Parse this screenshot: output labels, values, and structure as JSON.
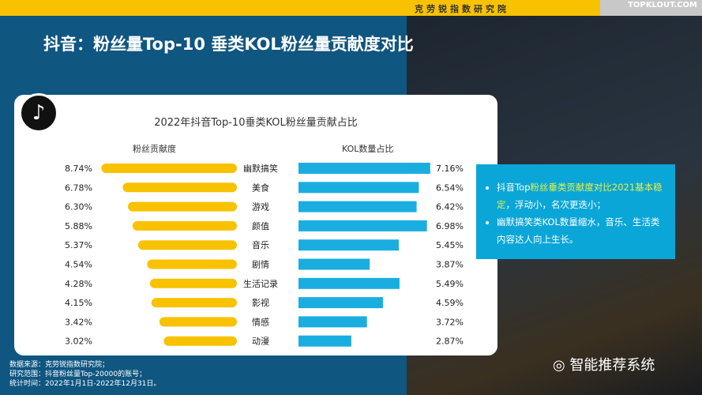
{
  "header": {
    "org": "克劳锐指数研究院",
    "brand": "TOPKLOUT.COM"
  },
  "title": "抖音：粉丝量Top-10 垂类KOL粉丝量贡献度对比",
  "logo": "tiktok-logo",
  "chart_data": {
    "type": "bar",
    "title": "2022年抖音Top-10垂类KOL粉丝量贡献占比",
    "categories": [
      "幽默搞笑",
      "美食",
      "游戏",
      "颜值",
      "音乐",
      "剧情",
      "生活记录",
      "影视",
      "情感",
      "动漫"
    ],
    "series": [
      {
        "name": "粉丝贡献度",
        "color": "#f8c200",
        "values": [
          8.74,
          6.78,
          6.3,
          5.88,
          5.37,
          4.54,
          4.28,
          4.15,
          3.42,
          3.02
        ],
        "labels": [
          "8.74%",
          "6.78%",
          "6.30%",
          "5.88%",
          "5.37%",
          "4.54%",
          "4.28%",
          "4.15%",
          "3.42%",
          "3.02%"
        ]
      },
      {
        "name": "KOL数量占比",
        "color": "#1aaee0",
        "values": [
          7.16,
          6.54,
          6.42,
          6.98,
          5.45,
          3.87,
          5.49,
          4.59,
          3.72,
          2.87
        ],
        "labels": [
          "7.16%",
          "6.54%",
          "6.42%",
          "6.98%",
          "5.45%",
          "3.87%",
          "5.49%",
          "4.59%",
          "3.72%",
          "2.87%"
        ]
      }
    ]
  },
  "info": {
    "b1_pre": "抖音Top",
    "b1_hl": "粉丝垂类贡献度对比2021基本稳定",
    "b1_post": "，浮动小，名次更迭小；",
    "b2": "幽默搞笑类KOL数量缩水，音乐、生活类内容达人向上生长。"
  },
  "footer": [
    "数据来源：克劳锐指数研究院；",
    "研究范围：抖音粉丝量Top-20000的账号；",
    "统计时间：2022年1月1日-2022年12月31日。"
  ],
  "wechat": "智能推荐系统"
}
